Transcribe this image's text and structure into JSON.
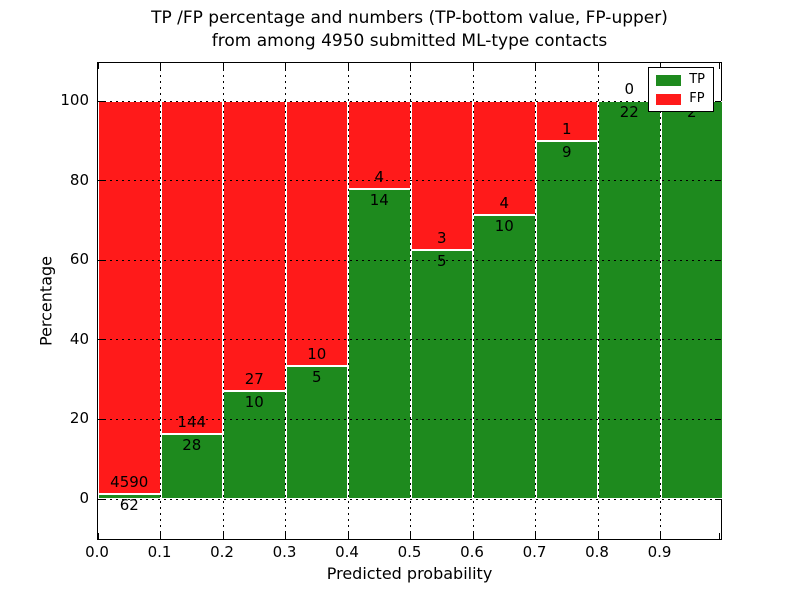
{
  "title": {
    "line1": "TP /FP percentage and numbers (TP-bottom value, FP-upper)",
    "line2": "from among 4950 submitted ML-type contacts"
  },
  "axes": {
    "xlabel": "Predicted probability",
    "ylabel": "Percentage",
    "x_tick_labels": [
      "0.0",
      "0.1",
      "0.2",
      "0.3",
      "0.4",
      "0.5",
      "0.6",
      "0.7",
      "0.8",
      "0.9"
    ],
    "y_tick_labels": [
      "0",
      "20",
      "40",
      "60",
      "80",
      "100"
    ],
    "y_tick_values": [
      0,
      20,
      40,
      60,
      80,
      100
    ]
  },
  "legend": {
    "items": [
      {
        "label": "TP",
        "color": "#1e8a1e"
      },
      {
        "label": "FP",
        "color": "#ff1a1a"
      }
    ]
  },
  "colors": {
    "tp_green": "#1e8a1e",
    "fp_red": "#ff1a1a",
    "grid": "#000000",
    "background": "#ffffff"
  },
  "chart_data": {
    "type": "bar",
    "subtype": "stacked_percentage_histogram",
    "title": "TP /FP percentage and numbers (TP-bottom value, FP-upper) from among 4950 submitted ML-type contacts",
    "xlabel": "Predicted probability",
    "ylabel": "Percentage",
    "total_contacts": 4950,
    "bin_edges": [
      0.0,
      0.1,
      0.2,
      0.3,
      0.4,
      0.5,
      0.6,
      0.7,
      0.8,
      0.9,
      1.0
    ],
    "categories": [
      "0.0-0.1",
      "0.1-0.2",
      "0.2-0.3",
      "0.3-0.4",
      "0.4-0.5",
      "0.5-0.6",
      "0.6-0.7",
      "0.7-0.8",
      "0.8-0.9",
      "0.9-1.0"
    ],
    "series": [
      {
        "name": "TP",
        "position": "bottom",
        "color": "#1e8a1e",
        "counts": [
          62,
          28,
          10,
          5,
          14,
          5,
          10,
          9,
          22,
          2
        ]
      },
      {
        "name": "FP",
        "position": "top",
        "color": "#ff1a1a",
        "counts": [
          4590,
          144,
          27,
          10,
          4,
          3,
          4,
          1,
          0,
          0
        ]
      }
    ],
    "tp_percent_of_bin": [
      1.33,
      16.28,
      27.03,
      33.33,
      77.78,
      62.5,
      71.43,
      90.0,
      100.0,
      100.0
    ],
    "bar_total_percent": 100,
    "xlim": [
      0.0,
      1.0
    ],
    "ylim": [
      -11,
      109.5
    ],
    "grid": true,
    "grid_style": "dotted",
    "legend_position": "upper_right"
  }
}
